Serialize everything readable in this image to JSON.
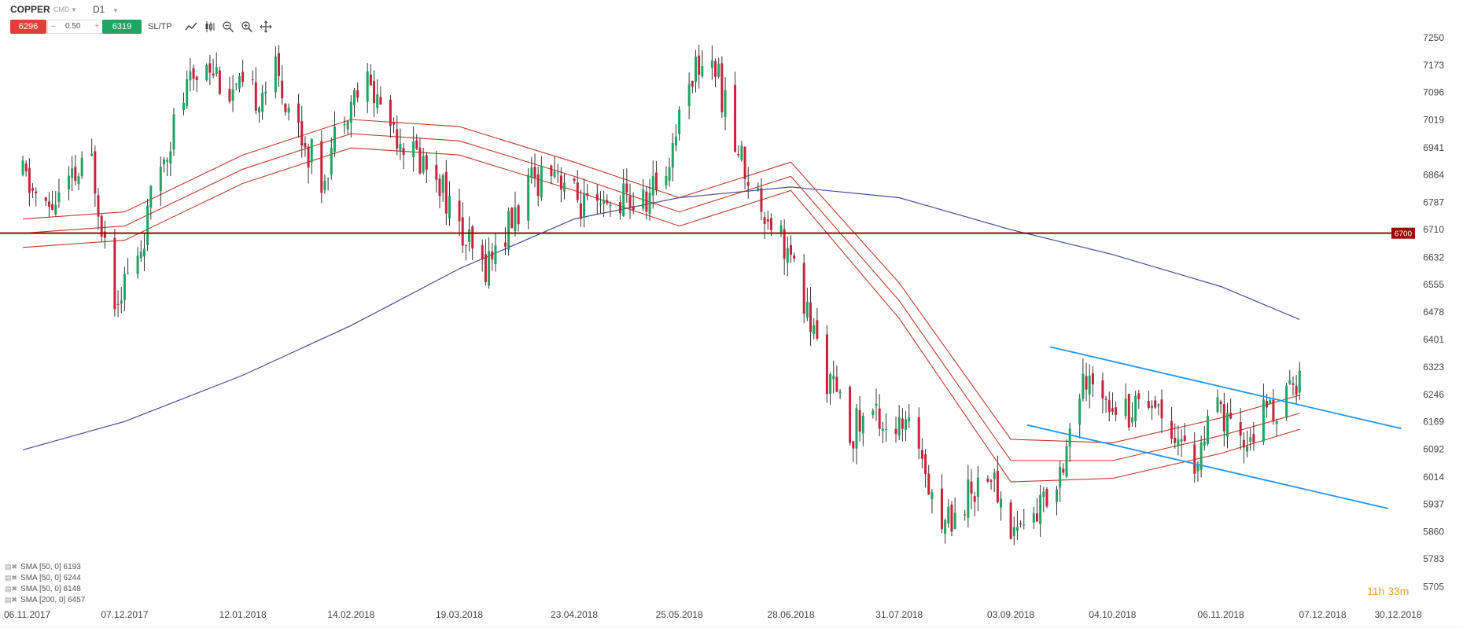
{
  "header": {
    "symbol": "COPPER",
    "symbol_type": "CMD",
    "timeframe": "D1",
    "sell_price": "6296",
    "volume": "0.50",
    "volume_minus": "–",
    "volume_plus": "+",
    "buy_price": "6319",
    "sltp_label": "SL/TP",
    "tools": [
      "line-chart-icon",
      "candle-type-icon",
      "zoom-out-icon",
      "zoom-in-icon",
      "crosshair-icon"
    ]
  },
  "colors": {
    "bull": "#1fa463",
    "bear": "#c8233a",
    "sma50": "#c0392b",
    "sma200": "#4a4a9a",
    "level": "#a00000",
    "channel": "#2196f3",
    "sell": "#e0403a",
    "buy": "#1fa463",
    "countdown": "#f0a030"
  },
  "legend": [
    "SMA [50, 0] 6193",
    "SMA [50, 0] 6244",
    "SMA [50, 0] 6148",
    "SMA [200, 0] 6457"
  ],
  "countdown": "11h 33m",
  "chart_data": {
    "type": "candlestick",
    "instrument": "COPPER",
    "timeframe": "D1",
    "y_ticks": [
      7250,
      7173,
      7096,
      7019,
      6941,
      6864,
      6787,
      6710,
      6632,
      6555,
      6478,
      6401,
      6323,
      6246,
      6169,
      6092,
      6014,
      5937,
      5860,
      5783,
      5705
    ],
    "ylim": [
      5675,
      7290
    ],
    "x_ticks": [
      "06.11.2017",
      "07.12.2017",
      "12.01.2018",
      "14.02.2018",
      "19.03.2018",
      "23.04.2018",
      "25.05.2018",
      "28.06.2018",
      "31.07.2018",
      "03.09.2018",
      "04.10.2018",
      "06.11.2018",
      "07.12.2018",
      "30.12.2018"
    ],
    "x_tick_dates": [
      "2017-11-06",
      "2017-12-07",
      "2018-01-12",
      "2018-02-14",
      "2018-03-19",
      "2018-04-23",
      "2018-05-25",
      "2018-06-28",
      "2018-07-31",
      "2018-09-03",
      "2018-10-04",
      "2018-11-06",
      "2018-12-07",
      "2018-12-30"
    ],
    "close_anchors": [
      [
        "2017-11-06",
        6860
      ],
      [
        "2017-11-13",
        6760
      ],
      [
        "2017-11-20",
        6830
      ],
      [
        "2017-11-27",
        6900
      ],
      [
        "2017-12-04",
        6530
      ],
      [
        "2017-12-11",
        6620
      ],
      [
        "2017-12-18",
        6900
      ],
      [
        "2017-12-25",
        7080
      ],
      [
        "2018-01-01",
        7200
      ],
      [
        "2018-01-08",
        7100
      ],
      [
        "2018-01-15",
        7080
      ],
      [
        "2018-01-22",
        7150
      ],
      [
        "2018-01-29",
        7000
      ],
      [
        "2018-02-05",
        6850
      ],
      [
        "2018-02-12",
        7060
      ],
      [
        "2018-02-19",
        7120
      ],
      [
        "2018-02-26",
        7020
      ],
      [
        "2018-03-05",
        6920
      ],
      [
        "2018-03-12",
        6880
      ],
      [
        "2018-03-19",
        6700
      ],
      [
        "2018-03-26",
        6600
      ],
      [
        "2018-04-02",
        6700
      ],
      [
        "2018-04-09",
        6820
      ],
      [
        "2018-04-16",
        6910
      ],
      [
        "2018-04-23",
        6800
      ],
      [
        "2018-04-30",
        6740
      ],
      [
        "2018-05-07",
        6800
      ],
      [
        "2018-05-14",
        6780
      ],
      [
        "2018-05-21",
        6880
      ],
      [
        "2018-05-28",
        7150
      ],
      [
        "2018-06-04",
        7200
      ],
      [
        "2018-06-11",
        6950
      ],
      [
        "2018-06-18",
        6800
      ],
      [
        "2018-06-25",
        6700
      ],
      [
        "2018-07-02",
        6500
      ],
      [
        "2018-07-09",
        6300
      ],
      [
        "2018-07-16",
        6140
      ],
      [
        "2018-07-23",
        6200
      ],
      [
        "2018-07-30",
        6150
      ],
      [
        "2018-08-06",
        6120
      ],
      [
        "2018-08-13",
        5880
      ],
      [
        "2018-08-20",
        5950
      ],
      [
        "2018-08-27",
        6040
      ],
      [
        "2018-09-03",
        5870
      ],
      [
        "2018-09-10",
        5900
      ],
      [
        "2018-09-17",
        6010
      ],
      [
        "2018-09-24",
        6250
      ],
      [
        "2018-10-01",
        6270
      ],
      [
        "2018-10-08",
        6200
      ],
      [
        "2018-10-15",
        6250
      ],
      [
        "2018-10-22",
        6160
      ],
      [
        "2018-10-29",
        6050
      ],
      [
        "2018-11-05",
        6200
      ],
      [
        "2018-11-12",
        6090
      ],
      [
        "2018-11-19",
        6190
      ],
      [
        "2018-11-26",
        6230
      ],
      [
        "2018-11-30",
        6300
      ]
    ],
    "horizontal_level": {
      "value": 6700,
      "label": "6700"
    },
    "sma200": [
      [
        "2017-11-06",
        6090
      ],
      [
        "2017-12-07",
        6170
      ],
      [
        "2018-01-12",
        6300
      ],
      [
        "2018-02-14",
        6440
      ],
      [
        "2018-03-19",
        6600
      ],
      [
        "2018-04-23",
        6740
      ],
      [
        "2018-05-25",
        6800
      ],
      [
        "2018-06-28",
        6830
      ],
      [
        "2018-07-31",
        6800
      ],
      [
        "2018-09-03",
        6710
      ],
      [
        "2018-10-04",
        6640
      ],
      [
        "2018-11-06",
        6550
      ],
      [
        "2018-11-30",
        6457
      ]
    ],
    "sma_envelope": [
      {
        "name": "SMA [50, 0] 6244",
        "points": [
          [
            "2017-11-06",
            6740
          ],
          [
            "2017-12-07",
            6760
          ],
          [
            "2018-01-12",
            6920
          ],
          [
            "2018-02-14",
            7020
          ],
          [
            "2018-03-19",
            7000
          ],
          [
            "2018-04-23",
            6900
          ],
          [
            "2018-05-25",
            6800
          ],
          [
            "2018-06-28",
            6900
          ],
          [
            "2018-07-31",
            6560
          ],
          [
            "2018-09-03",
            6120
          ],
          [
            "2018-10-04",
            6110
          ],
          [
            "2018-11-06",
            6180
          ],
          [
            "2018-11-30",
            6244
          ]
        ]
      },
      {
        "name": "SMA [50, 0] 6193",
        "points": [
          [
            "2017-11-06",
            6700
          ],
          [
            "2017-12-07",
            6720
          ],
          [
            "2018-01-12",
            6880
          ],
          [
            "2018-02-14",
            6980
          ],
          [
            "2018-03-19",
            6960
          ],
          [
            "2018-04-23",
            6860
          ],
          [
            "2018-05-25",
            6760
          ],
          [
            "2018-06-28",
            6860
          ],
          [
            "2018-07-31",
            6510
          ],
          [
            "2018-09-03",
            6060
          ],
          [
            "2018-10-04",
            6060
          ],
          [
            "2018-11-06",
            6130
          ],
          [
            "2018-11-30",
            6193
          ]
        ]
      },
      {
        "name": "SMA [50, 0] 6148",
        "points": [
          [
            "2017-11-06",
            6660
          ],
          [
            "2017-12-07",
            6680
          ],
          [
            "2018-01-12",
            6840
          ],
          [
            "2018-02-14",
            6940
          ],
          [
            "2018-03-19",
            6920
          ],
          [
            "2018-04-23",
            6820
          ],
          [
            "2018-05-25",
            6720
          ],
          [
            "2018-06-28",
            6820
          ],
          [
            "2018-07-31",
            6460
          ],
          [
            "2018-09-03",
            6000
          ],
          [
            "2018-10-04",
            6010
          ],
          [
            "2018-11-06",
            6080
          ],
          [
            "2018-11-30",
            6148
          ]
        ]
      }
    ],
    "channel_lines": [
      {
        "from": [
          "2018-09-15",
          6380
        ],
        "to": [
          "2018-12-31",
          6150
        ]
      },
      {
        "from": [
          "2018-09-08",
          6160
        ],
        "to": [
          "2018-12-27",
          5925
        ]
      }
    ]
  }
}
